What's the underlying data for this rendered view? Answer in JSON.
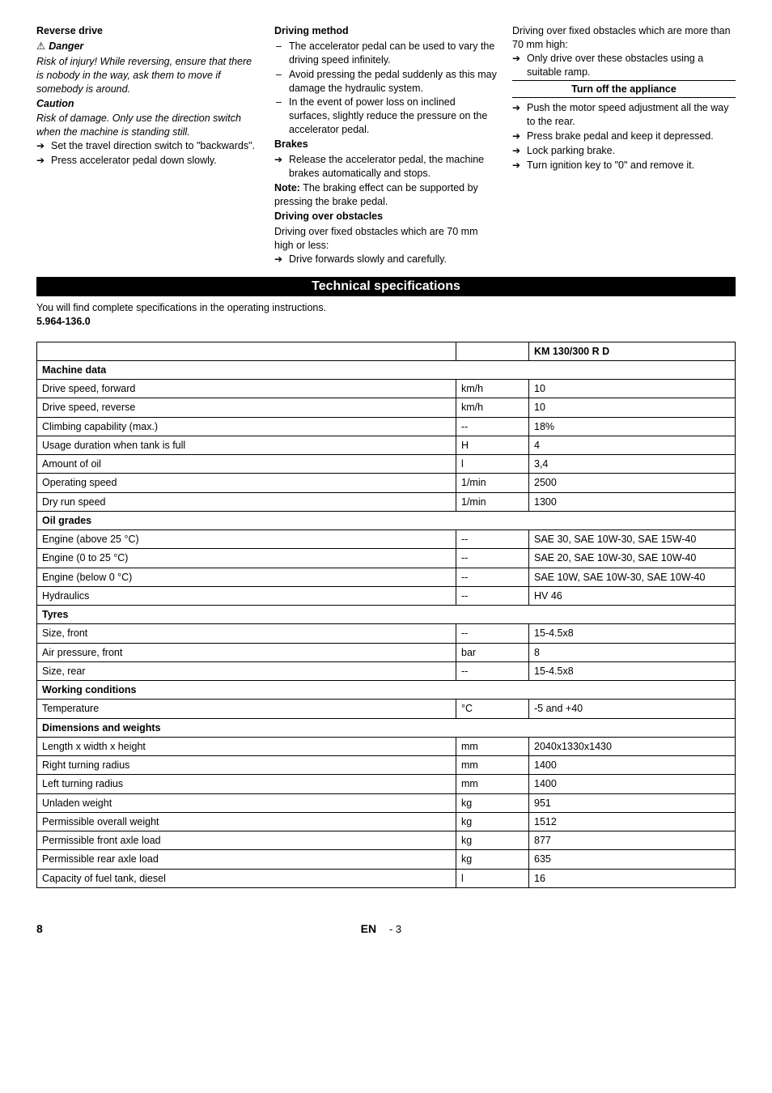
{
  "col1": {
    "h_reverse": "Reverse drive",
    "danger_label": "Danger",
    "danger_text": "Risk of injury! While reversing, ensure that there is nobody in the way, ask them to move if somebody is around.",
    "caution_label": "Caution",
    "caution_text": "Risk of damage. Only use the direction switch when the machine is standing still.",
    "bullets": [
      "Set the travel direction switch to \"backwards\".",
      "Press accelerator pedal down slowly."
    ]
  },
  "col2": {
    "h_driving": "Driving method",
    "dash": [
      "The accelerator pedal can be used to vary the driving speed infinitely.",
      "Avoid pressing the pedal suddenly as this may damage the hydraulic system.",
      "In the event of power loss on inclined surfaces, slightly reduce the pressure on the accelerator pedal."
    ],
    "h_brakes": "Brakes",
    "brakes_bullet": "Release the accelerator pedal, the machine brakes automatically and stops.",
    "note_prefix": "Note:",
    "note_text": " The braking effect can be supported by pressing the brake pedal.",
    "h_obstacles": "Driving over obstacles",
    "obstacles_intro": "Driving over fixed obstacles which are 70 mm high or less:",
    "obstacles_bullet": "Drive forwards slowly and carefully."
  },
  "col3": {
    "intro": "Driving over fixed obstacles which are more than 70 mm high:",
    "bullet": "Only drive over these obstacles using a suitable ramp.",
    "h_turnoff": "Turn off the appliance",
    "turnoff_bullets": [
      "Push the motor speed adjustment all the way to the rear.",
      "Press brake pedal and keep it depressed.",
      "Lock parking brake.",
      "Turn ignition key to \"0\" and remove it."
    ]
  },
  "tech_banner": "Technical specifications",
  "intro_line1": "You will find complete specifications in the operating instructions.",
  "intro_line2": "5.964-136.0",
  "table": {
    "model_header": "KM 130/300 R D",
    "sections": [
      {
        "title": "Machine data",
        "rows": [
          {
            "label": "Drive speed, forward",
            "unit": "km/h",
            "val": "10"
          },
          {
            "label": "Drive speed, reverse",
            "unit": "km/h",
            "val": "10"
          },
          {
            "label": "Climbing capability (max.)",
            "unit": "--",
            "val": "18%"
          },
          {
            "label": "Usage duration when tank is full",
            "unit": "H",
            "val": "4"
          },
          {
            "label": "Amount of oil",
            "unit": "l",
            "val": "3,4"
          },
          {
            "label": "Operating speed",
            "unit": "1/min",
            "val": "2500"
          },
          {
            "label": "Dry run speed",
            "unit": "1/min",
            "val": "1300"
          }
        ]
      },
      {
        "title": "Oil grades",
        "rows": [
          {
            "label": "Engine (above 25 °C)",
            "unit": "--",
            "val": "SAE 30, SAE 10W-30, SAE 15W-40"
          },
          {
            "label": "Engine (0 to 25 °C)",
            "unit": "--",
            "val": "SAE 20, SAE 10W-30, SAE 10W-40"
          },
          {
            "label": "Engine (below 0 °C)",
            "unit": "--",
            "val": "SAE 10W, SAE 10W-30, SAE 10W-40"
          },
          {
            "label": "Hydraulics",
            "unit": "--",
            "val": "HV 46"
          }
        ]
      },
      {
        "title": "Tyres",
        "rows": [
          {
            "label": "Size, front",
            "unit": "--",
            "val": "15-4.5x8"
          },
          {
            "label": "Air pressure, front",
            "unit": "bar",
            "val": "8"
          },
          {
            "label": "Size, rear",
            "unit": "--",
            "val": "15-4.5x8"
          }
        ]
      },
      {
        "title": "Working conditions",
        "rows": [
          {
            "label": "Temperature",
            "unit": "°C",
            "val": "-5 and +40"
          }
        ]
      },
      {
        "title": "Dimensions and weights",
        "rows": [
          {
            "label": "Length x width x height",
            "unit": "mm",
            "val": "2040x1330x1430"
          },
          {
            "label": "Right turning radius",
            "unit": "mm",
            "val": "1400"
          },
          {
            "label": "Left turning radius",
            "unit": "mm",
            "val": "1400"
          },
          {
            "label": "Unladen weight",
            "unit": "kg",
            "val": "951"
          },
          {
            "label": "Permissible overall weight",
            "unit": "kg",
            "val": "1512"
          },
          {
            "label": "Permissible front axle load",
            "unit": "kg",
            "val": "877"
          },
          {
            "label": "Permissible rear axle load",
            "unit": "kg",
            "val": "635"
          },
          {
            "label": "Capacity of fuel tank, diesel",
            "unit": "l",
            "val": "16"
          }
        ]
      }
    ]
  },
  "footer": {
    "page": "8",
    "lang": "EN",
    "sub": "- 3"
  }
}
